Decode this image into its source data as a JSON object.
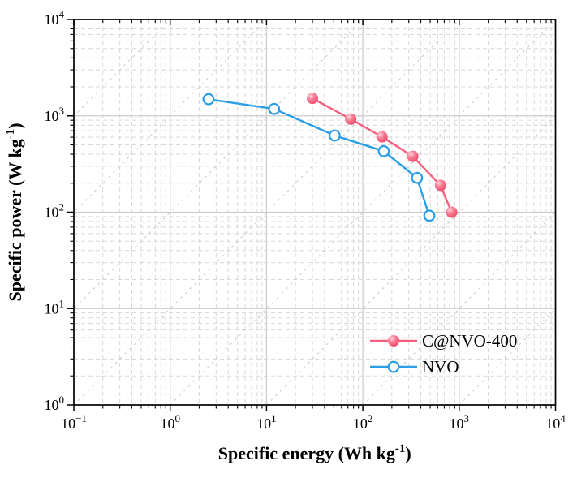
{
  "chart_data": {
    "type": "line",
    "title": "",
    "xlabel": {
      "text": "Specific energy (Wh kg",
      "sup": "-1",
      "close": ")"
    },
    "ylabel": {
      "text": "Specific power (W kg",
      "sup": "-1",
      "close": ")"
    },
    "x_scale": "log",
    "y_scale": "log",
    "xlim": [
      0.1,
      10000
    ],
    "ylim": [
      1,
      10000
    ],
    "x_tick_base": "10",
    "x_tick_exponents": [
      "-1",
      "0",
      "1",
      "2",
      "3",
      "4"
    ],
    "y_tick_base": "10",
    "y_tick_exponents": [
      "0",
      "1",
      "2",
      "3",
      "4"
    ],
    "grid": {
      "major": true,
      "minor": true,
      "diagonal_guides": true
    },
    "legend_position": "inside lower right",
    "series": [
      {
        "name": "C@NVO-400",
        "color": "#F5617F",
        "marker": "filled-ball",
        "marker_gradient": [
          "#FFD6DF",
          "#F87C94",
          "#EE4A6C"
        ],
        "points": [
          [
            30,
            1520
          ],
          [
            75,
            925
          ],
          [
            158,
            605
          ],
          [
            330,
            380
          ],
          [
            640,
            190
          ],
          [
            835,
            100
          ]
        ]
      },
      {
        "name": "NVO",
        "color": "#2A9EE7",
        "marker": "open-circle",
        "marker_fill": "#FFFFFF",
        "points": [
          [
            2.5,
            1490
          ],
          [
            12,
            1180
          ],
          [
            51,
            625
          ],
          [
            165,
            430
          ],
          [
            365,
            227
          ],
          [
            490,
            92
          ]
        ]
      }
    ]
  },
  "style": {
    "background": "#FFFFFF",
    "frame_color": "#000000",
    "major_grid_color": "#CDCDCD",
    "minor_grid_color": "#D8D8D8",
    "diagonal_guide_color": "#CFCFCF",
    "tick_color": "#000000",
    "text_color": "#000000"
  }
}
